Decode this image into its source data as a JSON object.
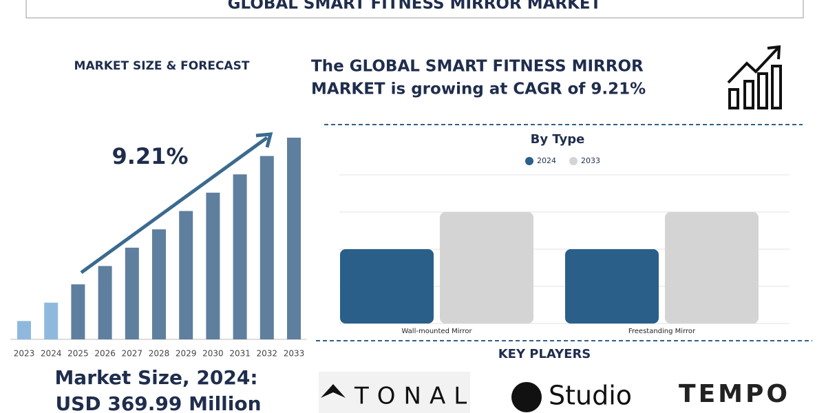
{
  "header": {
    "title": "GLOBAL SMART FITNESS MIRROR MARKET"
  },
  "left_heading": "MARKET SIZE & FORECAST",
  "headline": [
    "The GLOBAL SMART FITNESS MIRROR",
    "MARKET is growing at CAGR of 9.21%"
  ],
  "market_size": {
    "label": "Market Size, 2024:",
    "value": "USD 369.99 Million"
  },
  "key_players": {
    "title": "KEY PLAYERS",
    "logos": [
      "TONAL",
      "Studio",
      "TEMPO"
    ]
  },
  "chart_data": [
    {
      "type": "bar",
      "annotation": "9.21%",
      "categories": [
        "2023",
        "2024",
        "2025",
        "2026",
        "2027",
        "2028",
        "2029",
        "2030",
        "2031",
        "2032",
        "2033"
      ],
      "values": [
        1,
        2,
        3,
        4,
        5,
        6,
        7,
        8,
        9,
        10,
        11
      ],
      "colors": [
        "#8fb8de",
        "#8fb8de",
        "#5f7f9f",
        "#5f7f9f",
        "#5f7f9f",
        "#5f7f9f",
        "#5f7f9f",
        "#5f7f9f",
        "#5f7f9f",
        "#5f7f9f",
        "#5f7f9f"
      ],
      "ylim": [
        0,
        11
      ]
    },
    {
      "type": "bar",
      "title": "By Type",
      "categories": [
        "Wall-mounted Mirror",
        "Freestanding Mirror"
      ],
      "series": [
        {
          "name": "2024",
          "color": "#2a5f8a",
          "values": [
            2,
            2
          ]
        },
        {
          "name": "2033",
          "color": "#d4d4d4",
          "values": [
            3,
            3
          ]
        }
      ],
      "ylim": [
        0,
        4
      ],
      "yticks": [
        0,
        1,
        2,
        3,
        4
      ],
      "grid": true,
      "legend": "top"
    }
  ]
}
